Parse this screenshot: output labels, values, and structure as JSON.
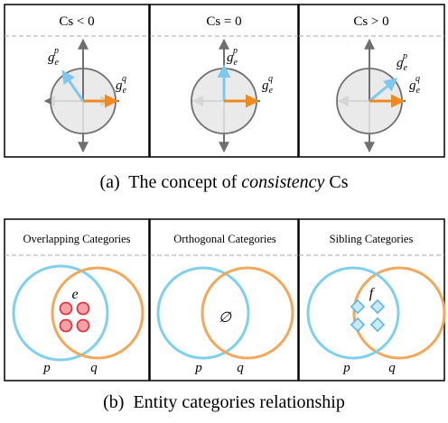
{
  "top": {
    "panels": [
      {
        "title": "Cs < 0",
        "p_label_main": "g",
        "p_label_sub": "e",
        "p_label_sup": "p",
        "q_label_main": "g",
        "q_label_sub": "e",
        "q_label_sup": "q"
      },
      {
        "title": "Cs = 0",
        "p_label_main": "g",
        "p_label_sub": "e",
        "p_label_sup": "p",
        "q_label_main": "g",
        "q_label_sub": "e",
        "q_label_sup": "q"
      },
      {
        "title": "Cs > 0",
        "p_label_main": "g",
        "p_label_sub": "e",
        "p_label_sup": "p",
        "q_label_main": "g",
        "q_label_sub": "e",
        "q_label_sup": "q"
      }
    ],
    "caption_prefix": "(a)  The concept of ",
    "caption_italic": "consistency",
    "caption_suffix": " Cs"
  },
  "bottom": {
    "panels": [
      {
        "title": "Overlapping Categories",
        "p_label": "p",
        "q_label": "q",
        "point_label": "e"
      },
      {
        "title": "Orthogonal Categories",
        "p_label": "p",
        "q_label": "q",
        "point_label": "∅"
      },
      {
        "title": "Sibling Categories",
        "p_label": "p",
        "q_label": "q",
        "point_label": "f"
      }
    ],
    "caption": "(b)  Entity categories relationship"
  },
  "colors": {
    "blue_vector": "#7ec8ef",
    "orange_vector": "#f08a1e",
    "circle_fill": "#e6e6e6",
    "axis": "#707070",
    "venn_blue": "#7ed0ee",
    "venn_orange": "#f2a85a",
    "red_dot_fill": "#f3a3a8",
    "red_dot_stroke": "#e0353f",
    "diamond_fill": "#c9e9f7",
    "diamond_stroke": "#5fb6e3"
  }
}
